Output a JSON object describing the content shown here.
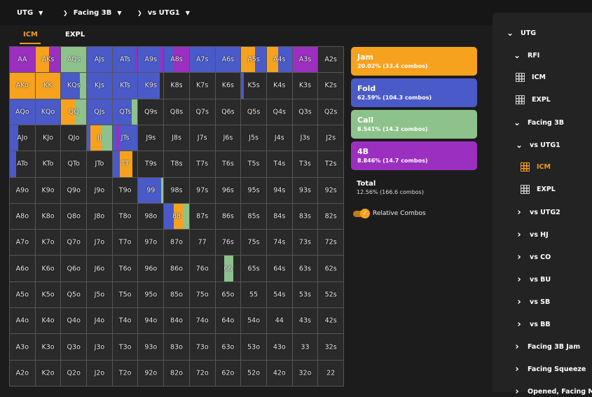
{
  "breadcrumb": [
    "UTG",
    "Facing 3B",
    "vs UTG1"
  ],
  "tabs": [
    {
      "label": "ICM",
      "active": true
    },
    {
      "label": "EXPL",
      "active": false
    }
  ],
  "colors": {
    "jam": "#f7a21e",
    "fold": "#4a5ac8",
    "call": "#8ec28c",
    "fourbet": "#9b2fbf",
    "empty": "#2a2a2a",
    "accent": "#f19c1c"
  },
  "hands": [
    [
      "AA",
      "AKs",
      "AQs",
      "AJs",
      "ATs",
      "A9s",
      "A8s",
      "A7s",
      "A6s",
      "A5s",
      "A4s",
      "A3s",
      "A2s"
    ],
    [
      "AKo",
      "KK",
      "KQs",
      "KJs",
      "KTs",
      "K9s",
      "K8s",
      "K7s",
      "K6s",
      "K5s",
      "K4s",
      "K3s",
      "K2s"
    ],
    [
      "AQo",
      "KQo",
      "QQ",
      "QJs",
      "QTs",
      "Q9s",
      "Q8s",
      "Q7s",
      "Q6s",
      "Q5s",
      "Q4s",
      "Q3s",
      "Q2s"
    ],
    [
      "AJo",
      "KJo",
      "QJo",
      "JJ",
      "JTs",
      "J9s",
      "J8s",
      "J7s",
      "J6s",
      "J5s",
      "J4s",
      "J3s",
      "J2s"
    ],
    [
      "ATo",
      "KTo",
      "QTo",
      "JTo",
      "TT",
      "T9s",
      "T8s",
      "T7s",
      "T6s",
      "T5s",
      "T4s",
      "T3s",
      "T2s"
    ],
    [
      "A9o",
      "K9o",
      "Q9o",
      "J9o",
      "T9o",
      "99",
      "98s",
      "97s",
      "96s",
      "95s",
      "94s",
      "93s",
      "92s"
    ],
    [
      "A8o",
      "K8o",
      "Q8o",
      "J8o",
      "T8o",
      "98o",
      "88",
      "87s",
      "86s",
      "85s",
      "84s",
      "83s",
      "82s"
    ],
    [
      "A7o",
      "K7o",
      "Q7o",
      "J7o",
      "T7o",
      "97o",
      "87o",
      "77",
      "76s",
      "75s",
      "74s",
      "73s",
      "72s"
    ],
    [
      "A6o",
      "K6o",
      "Q6o",
      "J6o",
      "T6o",
      "96o",
      "86o",
      "76o",
      "66",
      "65s",
      "64s",
      "63s",
      "62s"
    ],
    [
      "A5o",
      "K5o",
      "Q5o",
      "J5o",
      "T5o",
      "95o",
      "85o",
      "75o",
      "65o",
      "55",
      "54s",
      "53s",
      "52s"
    ],
    [
      "A4o",
      "K4o",
      "Q4o",
      "J4o",
      "T4o",
      "94o",
      "84o",
      "74o",
      "64o",
      "54o",
      "44",
      "43s",
      "42s"
    ],
    [
      "A3o",
      "K3o",
      "Q3o",
      "J3o",
      "T3o",
      "93o",
      "83o",
      "73o",
      "63o",
      "53o",
      "43o",
      "33",
      "32s"
    ],
    [
      "A2o",
      "K2o",
      "Q2o",
      "J2o",
      "T2o",
      "92o",
      "82o",
      "72o",
      "62o",
      "52o",
      "42o",
      "32o",
      "22"
    ]
  ],
  "strategy": {
    "AA": [
      {
        "a": "fourbet",
        "f": 1
      }
    ],
    "AKs": [
      {
        "a": "jam",
        "f": 0.55
      },
      {
        "a": "fourbet",
        "f": 0.45
      }
    ],
    "AQs": [
      {
        "a": "call",
        "f": 1
      }
    ],
    "AJs": [
      {
        "a": "fold",
        "f": 1
      }
    ],
    "ATs": [
      {
        "a": "fold",
        "f": 0.9
      },
      {
        "a": "fourbet",
        "f": 0.1
      }
    ],
    "A9s": [
      {
        "a": "fold",
        "f": 0.88
      },
      {
        "a": "fourbet",
        "f": 0.12
      }
    ],
    "A8s": [
      {
        "a": "fold",
        "f": 0.4
      },
      {
        "a": "fourbet",
        "f": 0.6
      }
    ],
    "A7s": [
      {
        "a": "fold",
        "f": 1
      }
    ],
    "A6s": [
      {
        "a": "fold",
        "f": 1
      }
    ],
    "A5s": [
      {
        "a": "jam",
        "f": 0.55
      },
      {
        "a": "fold",
        "f": 0.45
      }
    ],
    "A4s": [
      {
        "a": "jam",
        "f": 0.45
      },
      {
        "a": "fold",
        "f": 0.55
      }
    ],
    "A3s": [
      {
        "a": "fourbet",
        "f": 1
      }
    ],
    "AKo": [
      {
        "a": "jam",
        "f": 1
      }
    ],
    "KK": [
      {
        "a": "jam",
        "f": 1
      }
    ],
    "KQs": [
      {
        "a": "fold",
        "f": 0.75
      },
      {
        "a": "call",
        "f": 0.25
      }
    ],
    "KJs": [
      {
        "a": "fold",
        "f": 1
      }
    ],
    "KTs": [
      {
        "a": "fold",
        "f": 1
      }
    ],
    "K9s": [
      {
        "a": "fold",
        "f": 0.85
      }
    ],
    "K5s": [
      {
        "a": "fold",
        "f": 0.1
      }
    ],
    "AQo": [
      {
        "a": "fold",
        "f": 1
      }
    ],
    "KQo": [
      {
        "a": "fold",
        "f": 1
      }
    ],
    "QQ": [
      {
        "a": "jam",
        "f": 0.55
      },
      {
        "a": "call",
        "f": 0.45
      }
    ],
    "QJs": [
      {
        "a": "fold",
        "f": 1
      }
    ],
    "QTs": [
      {
        "a": "fold",
        "f": 0.75
      },
      {
        "a": "call",
        "f": 0.25
      }
    ],
    "AJo": [
      {
        "a": "fold",
        "f": 0.35
      }
    ],
    "JJ": [
      {
        "a": "fold",
        "f": 0.15
      },
      {
        "a": "jam",
        "f": 0.45
      },
      {
        "a": "call",
        "f": 0.4
      }
    ],
    "JTs": [
      {
        "a": "fold",
        "f": 0.15
      },
      {
        "a": "fourbet",
        "f": 0.1
      },
      {
        "a": "fold",
        "f": 0.75
      }
    ],
    "ATo": [
      {
        "a": "fold",
        "f": 0.25
      }
    ],
    "TT": [
      {
        "a": "fold",
        "f": 0.3
      },
      {
        "a": "jam",
        "f": 0.5
      }
    ],
    "99": [
      {
        "a": "fold",
        "f": 0.15
      },
      {
        "a": "fold",
        "f": 0.75
      },
      {
        "a": "call",
        "f": 0.1
      }
    ],
    "88": [
      {
        "a": "fold",
        "f": 0.4
      },
      {
        "a": "jam",
        "f": 0.35
      },
      {
        "a": "call",
        "f": 0.25
      }
    ],
    "66": [
      {
        "a": "none",
        "f": 0.35
      },
      {
        "a": "call",
        "f": 0.35
      }
    ]
  },
  "actions": [
    {
      "key": "jam",
      "name": "Jam",
      "detail": "20.02% (33.4 combos)",
      "color": "#f7a21e"
    },
    {
      "key": "fold",
      "name": "Fold",
      "detail": "62.59% (104.3 combos)",
      "color": "#4a5ac8"
    },
    {
      "key": "call",
      "name": "Call",
      "detail": "8.541% (14.2 combos)",
      "color": "#8ec28c"
    },
    {
      "key": "fourbet",
      "name": "4B",
      "detail": "8.846% (14.7 combos)",
      "color": "#9b2fbf"
    }
  ],
  "total": {
    "title": "Total",
    "detail": "12.56% (166.6 combos)"
  },
  "toggle": {
    "label": "Relative Combos",
    "checked": true
  },
  "sidebar": [
    {
      "label": "UTG",
      "level": 0,
      "chev": "down"
    },
    {
      "label": "RFI",
      "level": 1,
      "chev": "down"
    },
    {
      "label": "ICM",
      "level": 2,
      "icon": "grid-icon"
    },
    {
      "label": "EXPL",
      "level": 2,
      "icon": "grid-icon"
    },
    {
      "label": "Facing 3B",
      "level": 1,
      "chev": "down"
    },
    {
      "label": "vs UTG1",
      "level": 2,
      "chev": "down"
    },
    {
      "label": "ICM",
      "level": 3,
      "icon": "grid-icon",
      "active": true
    },
    {
      "label": "EXPL",
      "level": 3,
      "icon": "grid-icon"
    },
    {
      "label": "vs UTG2",
      "level": 2,
      "chev": "right"
    },
    {
      "label": "vs HJ",
      "level": 2,
      "chev": "right"
    },
    {
      "label": "vs CO",
      "level": 2,
      "chev": "right"
    },
    {
      "label": "vs BU",
      "level": 2,
      "chev": "right"
    },
    {
      "label": "vs SB",
      "level": 2,
      "chev": "right"
    },
    {
      "label": "vs BB",
      "level": 2,
      "chev": "right"
    },
    {
      "label": "Facing 3B Jam",
      "level": 1,
      "chev": "right"
    },
    {
      "label": "Facing Squeeze",
      "level": 1,
      "chev": "right"
    },
    {
      "label": "Opened, Facing M",
      "level": 1,
      "chev": "right"
    }
  ]
}
